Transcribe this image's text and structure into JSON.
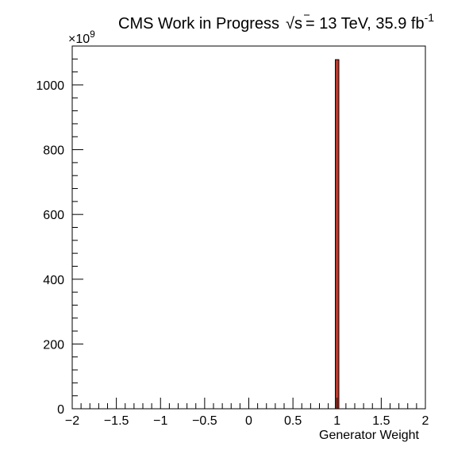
{
  "chart_data": {
    "type": "bar",
    "title_prefix": "CMS Work in Progress",
    "sqrt_symbol": "√",
    "sqrt_var": "s",
    "title_energy": "= 13 TeV, 35.9 fb",
    "title_lumi_exp": "-1",
    "xlabel": "Generator Weight",
    "ylabel": "",
    "y_multiplier_base": "×10",
    "y_multiplier_exp": "9",
    "xlim": [
      -2,
      2
    ],
    "ylim": [
      0,
      1120
    ],
    "x_tick_labels": [
      "−2",
      "−1.5",
      "−1",
      "−0.5",
      "0",
      "0.5",
      "1",
      "1.5",
      "2"
    ],
    "y_tick_labels": [
      "0",
      "200",
      "400",
      "600",
      "800",
      "1000"
    ],
    "bins": [
      {
        "x_low": 0.98,
        "x_high": 1.02,
        "value": 1078,
        "fill": "#c0392b",
        "edge": "#000000"
      }
    ]
  }
}
